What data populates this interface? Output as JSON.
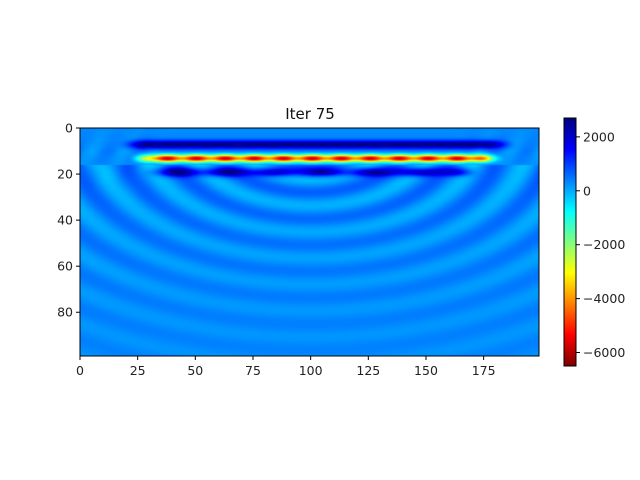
{
  "chart_data": {
    "type": "heatmap",
    "title": "Iter 75",
    "xlabel": "",
    "ylabel": "",
    "x_range": [
      0,
      199
    ],
    "y_range": [
      99,
      0
    ],
    "y_inverted": true,
    "x_ticks": [
      0,
      25,
      50,
      75,
      100,
      125,
      150,
      175
    ],
    "x_tick_labels": [
      "0",
      "25",
      "50",
      "75",
      "100",
      "125",
      "150",
      "175"
    ],
    "y_ticks": [
      0,
      20,
      40,
      60,
      80
    ],
    "y_tick_labels": [
      "0",
      "20",
      "40",
      "60",
      "80"
    ],
    "colormap": "jet_r",
    "colormap_stops": [
      "#000080",
      "#0000ff",
      "#0080ff",
      "#00ffff",
      "#80ff80",
      "#ffff00",
      "#ff8000",
      "#ff0000",
      "#800000"
    ],
    "colorbar": {
      "vmin": -6500,
      "vmax": 2700,
      "ticks": [
        2000,
        0,
        -2000,
        -4000,
        -6000
      ],
      "tick_labels": [
        "2000",
        "0",
        "−2000",
        "−4000",
        "−6000"
      ]
    },
    "field_features": {
      "background_value": 300,
      "strong_negative_band": {
        "depth": 13,
        "x_start": 35,
        "x_end": 170,
        "min_value": -6200
      },
      "positive_band_above": {
        "depth": 7,
        "x_start": 30,
        "x_end": 175,
        "max_value": 2400
      },
      "positive_band_below": {
        "depth": 19,
        "x_start": 40,
        "x_end": 160,
        "max_value": 2200
      },
      "curved_wavefronts": {
        "center_x": 100,
        "center_depth": 5,
        "count": 7
      }
    }
  }
}
